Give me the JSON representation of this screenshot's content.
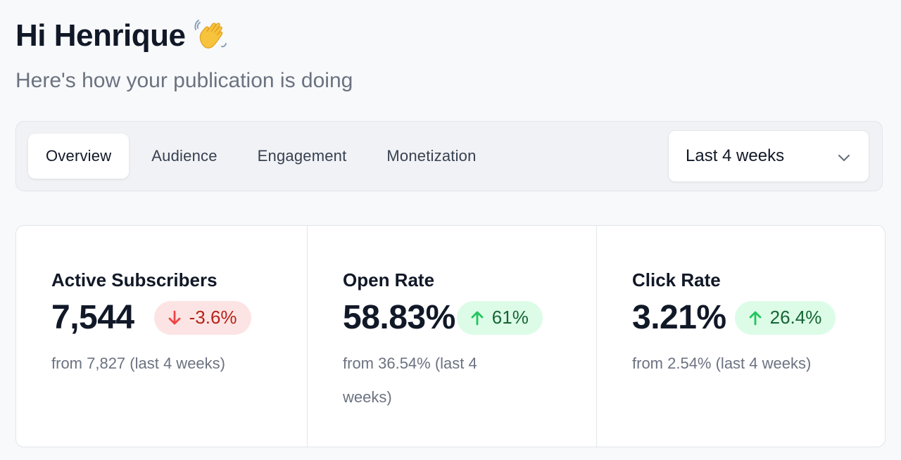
{
  "header": {
    "greeting": "Hi Henrique",
    "wave_icon": "waving-hand-emoji",
    "subtitle": "Here's how your publication is doing"
  },
  "tabs": [
    {
      "label": "Overview",
      "active": true
    },
    {
      "label": "Audience",
      "active": false
    },
    {
      "label": "Engagement",
      "active": false
    },
    {
      "label": "Monetization",
      "active": false
    }
  ],
  "date_range": {
    "selected": "Last 4 weeks",
    "icon": "chevron-down-icon"
  },
  "stats": [
    {
      "label": "Active Subscribers",
      "value": "7,544",
      "change": "-3.6%",
      "direction": "down",
      "footnote": "from 7,827 (last 4 weeks)"
    },
    {
      "label": "Open Rate",
      "value": "58.83%",
      "change": "61%",
      "direction": "up",
      "footnote": "from 36.54% (last 4 weeks)"
    },
    {
      "label": "Click Rate",
      "value": "3.21%",
      "change": "26.4%",
      "direction": "up",
      "footnote": "from 2.54% (last 4 weeks)"
    }
  ],
  "colors": {
    "down_bg": "#fde4e4",
    "down_fg": "#b42318",
    "down_arrow": "#ef4444",
    "up_bg": "#dcfce7",
    "up_fg": "#166534",
    "up_arrow": "#22c55e"
  }
}
